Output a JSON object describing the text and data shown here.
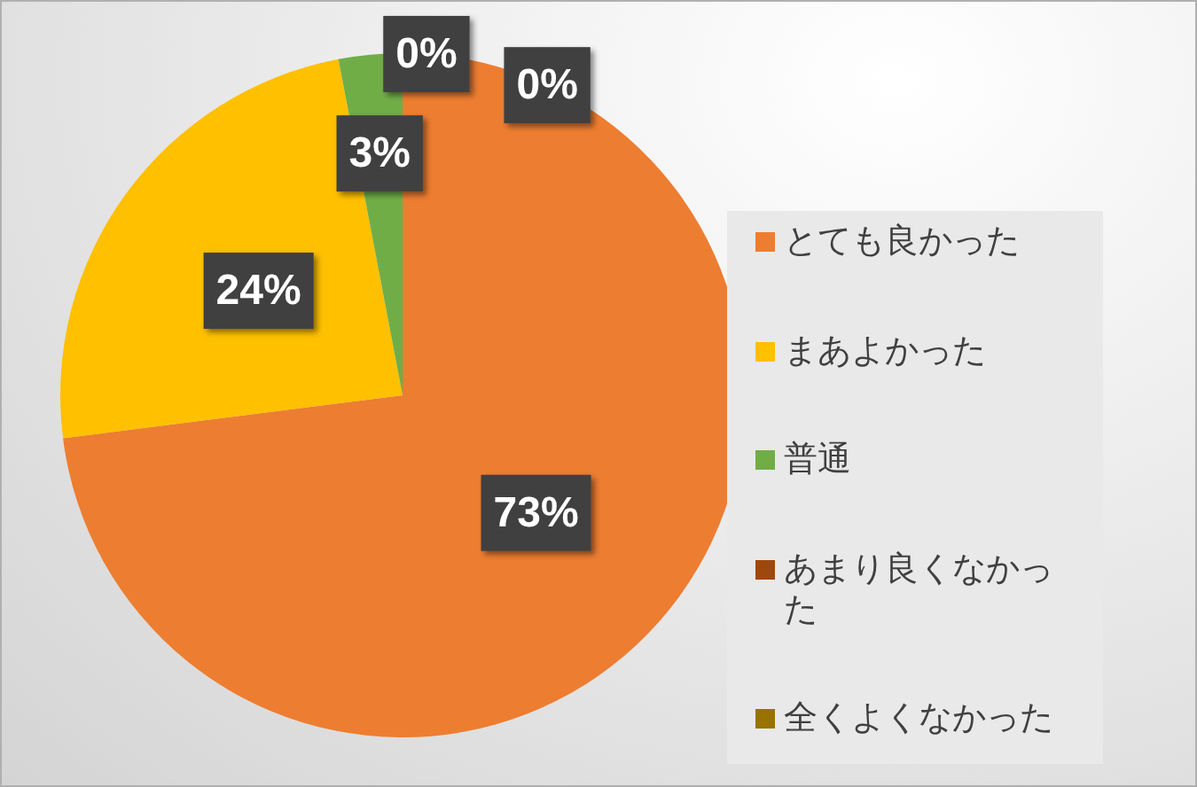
{
  "chart_data": {
    "type": "pie",
    "categories": [
      "とても良かった",
      "まあよかった",
      "普通",
      "あまり良くなかった",
      "全くよくなかった"
    ],
    "values": [
      73,
      24,
      3,
      0,
      0
    ],
    "colors": [
      "#ed7d31",
      "#ffc000",
      "#70ad47",
      "#9e480e",
      "#997300"
    ],
    "value_labels": [
      "73%",
      "24%",
      "3%",
      "0%",
      "0%"
    ],
    "legend": "right"
  }
}
